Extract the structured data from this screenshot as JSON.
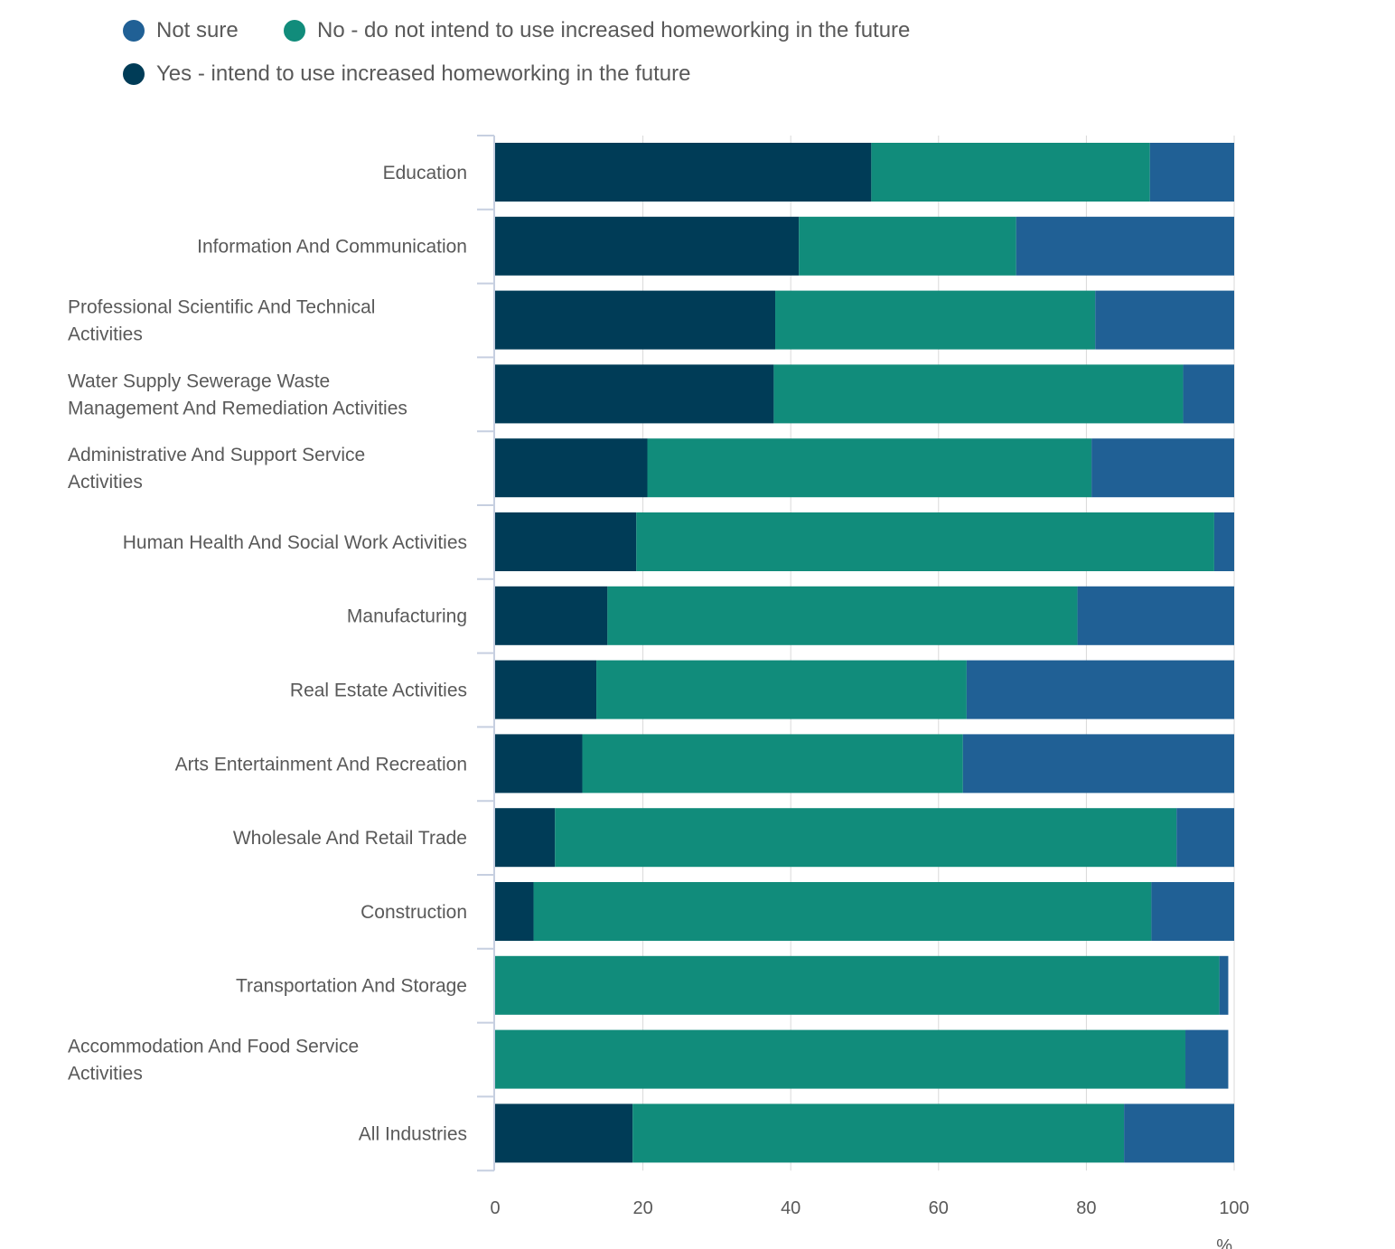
{
  "chart_data": {
    "type": "bar",
    "orientation": "horizontal",
    "stacked": true,
    "title": "",
    "xlabel": "%",
    "ylabel": "",
    "xlim": [
      0,
      100
    ],
    "x_ticks": [
      "0",
      "20",
      "40",
      "60",
      "80",
      "100"
    ],
    "grid": true,
    "legend_position": "top-left",
    "categories": [
      "Education",
      "Information And Communication",
      "Professional Scientific And Technical Activities",
      "Water Supply Sewerage Waste Management And Remediation Activities",
      "Administrative And Support Service Activities",
      "Human Health And Social Work Activities",
      "Manufacturing",
      "Real Estate Activities",
      "Arts Entertainment And Recreation",
      "Wholesale And Retail Trade",
      "Construction",
      "Transportation And Storage",
      "Accommodation And Food Service Activities",
      "All Industries"
    ],
    "category_lines": [
      [
        "Education"
      ],
      [
        "Information And Communication"
      ],
      [
        "Professional Scientific And Technical",
        "Activities"
      ],
      [
        "Water Supply Sewerage Waste",
        "Management And Remediation Activities"
      ],
      [
        "Administrative And Support Service",
        "Activities"
      ],
      [
        "Human Health And Social Work Activities"
      ],
      [
        "Manufacturing"
      ],
      [
        "Real Estate Activities"
      ],
      [
        "Arts Entertainment And Recreation"
      ],
      [
        "Wholesale And Retail Trade"
      ],
      [
        "Construction"
      ],
      [
        "Transportation And Storage"
      ],
      [
        "Accommodation And Food Service",
        "Activities"
      ],
      [
        "All Industries"
      ]
    ],
    "series": [
      {
        "name": "Yes - intend to use increased homeworking in the future",
        "color": "#003c57",
        "values": [
          50.9,
          41.1,
          37.9,
          37.7,
          20.6,
          19.1,
          15.2,
          13.7,
          11.8,
          8.1,
          5.2,
          0,
          0,
          18.6
        ]
      },
      {
        "name": "No - do not intend to use increased homeworking in the future",
        "color": "#118c7b",
        "values": [
          37.7,
          29.4,
          43.3,
          55.4,
          60.1,
          78.2,
          63.6,
          50.1,
          51.5,
          84.1,
          83.6,
          98.0,
          93.4,
          66.5
        ]
      },
      {
        "name": "Not sure",
        "color": "#206095",
        "values": [
          11.4,
          29.5,
          18.8,
          6.9,
          19.3,
          2.7,
          21.2,
          36.2,
          36.7,
          7.8,
          11.2,
          1.2,
          5.8,
          14.9
        ]
      }
    ],
    "legend_order": [
      {
        "name": "Not sure",
        "color": "#206095"
      },
      {
        "name": "No - do not intend to use increased homeworking in the future",
        "color": "#118c7b"
      },
      {
        "name": "Yes - intend to use increased homeworking in the future",
        "color": "#003c57"
      }
    ]
  }
}
